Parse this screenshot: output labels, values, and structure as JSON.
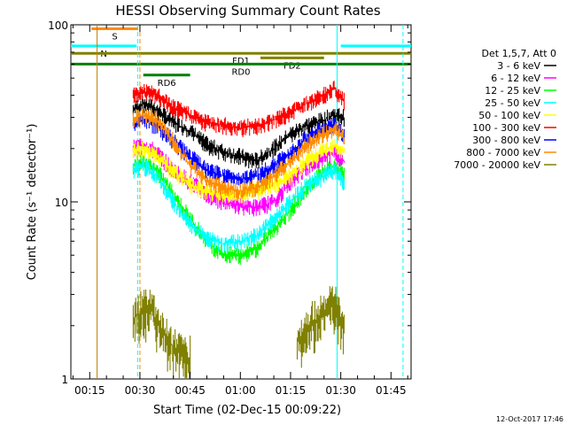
{
  "chart_data": {
    "type": "line",
    "title": "HESSI Observing Summary Count Rates",
    "ylabel": "Count Rate (s⁻¹ detector⁻¹)",
    "xlabel": "Start Time (02-Dec-15 00:09:22)",
    "y_scale": "log",
    "ylim": [
      1,
      100
    ],
    "y_ticks": [
      {
        "value": 1,
        "label": "1"
      },
      {
        "value": 10,
        "label": "10"
      },
      {
        "value": 100,
        "label": "100"
      }
    ],
    "x_range_min": [
      9.37,
      111
    ],
    "x_ticks": [
      {
        "value": 15,
        "label": "00:15"
      },
      {
        "value": 30,
        "label": "00:30"
      },
      {
        "value": 45,
        "label": "00:45"
      },
      {
        "value": 60,
        "label": "01:00"
      },
      {
        "value": 75,
        "label": "01:15"
      },
      {
        "value": 90,
        "label": "01:30"
      },
      {
        "value": 105,
        "label": "01:45"
      }
    ],
    "legend_title": "Det 1,5,7, Att 0",
    "legend_position": "right",
    "series": [
      {
        "name": "3 - 6 keV",
        "color": "#000000",
        "points": [
          [
            28,
            33
          ],
          [
            31,
            36
          ],
          [
            35,
            33
          ],
          [
            40,
            28
          ],
          [
            45,
            25
          ],
          [
            50,
            21
          ],
          [
            55,
            19
          ],
          [
            60,
            18
          ],
          [
            65,
            17
          ],
          [
            70,
            20
          ],
          [
            75,
            24
          ],
          [
            80,
            27
          ],
          [
            85,
            29
          ],
          [
            88,
            31
          ],
          [
            91,
            30
          ]
        ]
      },
      {
        "name": "6 - 12 keV",
        "color": "#ff00ff",
        "points": [
          [
            28,
            20
          ],
          [
            31,
            21
          ],
          [
            35,
            19
          ],
          [
            40,
            15
          ],
          [
            45,
            13
          ],
          [
            50,
            11
          ],
          [
            55,
            10
          ],
          [
            60,
            9.5
          ],
          [
            65,
            9.3
          ],
          [
            70,
            10
          ],
          [
            75,
            13
          ],
          [
            80,
            16
          ],
          [
            85,
            18
          ],
          [
            88,
            19
          ],
          [
            91,
            17
          ]
        ]
      },
      {
        "name": "12 - 25 keV",
        "color": "#00ff00",
        "points": [
          [
            28,
            16
          ],
          [
            31,
            17
          ],
          [
            35,
            15
          ],
          [
            40,
            11
          ],
          [
            45,
            8
          ],
          [
            50,
            6
          ],
          [
            55,
            5
          ],
          [
            60,
            5
          ],
          [
            65,
            5.5
          ],
          [
            70,
            7
          ],
          [
            75,
            9
          ],
          [
            80,
            12
          ],
          [
            85,
            15
          ],
          [
            88,
            16
          ],
          [
            91,
            14
          ]
        ]
      },
      {
        "name": "25 - 50 keV",
        "color": "#00ffff",
        "points": [
          [
            28,
            15
          ],
          [
            31,
            16
          ],
          [
            35,
            14
          ],
          [
            40,
            10
          ],
          [
            45,
            7.5
          ],
          [
            50,
            6.2
          ],
          [
            55,
            5.8
          ],
          [
            60,
            6
          ],
          [
            65,
            6.5
          ],
          [
            70,
            8
          ],
          [
            75,
            10
          ],
          [
            80,
            12.5
          ],
          [
            85,
            14
          ],
          [
            88,
            15
          ],
          [
            91,
            13
          ]
        ]
      },
      {
        "name": "50 - 100 keV",
        "color": "#ffff00",
        "points": [
          [
            28,
            19
          ],
          [
            31,
            20
          ],
          [
            35,
            18
          ],
          [
            40,
            15
          ],
          [
            45,
            12.5
          ],
          [
            50,
            11.5
          ],
          [
            55,
            11
          ],
          [
            60,
            11
          ],
          [
            65,
            11.5
          ],
          [
            70,
            12.5
          ],
          [
            75,
            14
          ],
          [
            80,
            17
          ],
          [
            85,
            19.5
          ],
          [
            88,
            21
          ],
          [
            91,
            19
          ]
        ]
      },
      {
        "name": "100 - 300 keV",
        "color": "#ff0000",
        "points": [
          [
            28,
            40
          ],
          [
            31,
            42
          ],
          [
            35,
            40
          ],
          [
            40,
            34
          ],
          [
            45,
            31
          ],
          [
            50,
            28
          ],
          [
            55,
            27
          ],
          [
            60,
            26
          ],
          [
            65,
            27
          ],
          [
            70,
            29
          ],
          [
            75,
            32
          ],
          [
            80,
            36
          ],
          [
            85,
            40
          ],
          [
            88,
            44
          ],
          [
            91,
            37
          ]
        ]
      },
      {
        "name": "300 - 800 keV",
        "color": "#0000ff",
        "points": [
          [
            28,
            27
          ],
          [
            31,
            29
          ],
          [
            35,
            27
          ],
          [
            40,
            22
          ],
          [
            45,
            18
          ],
          [
            50,
            15
          ],
          [
            55,
            14
          ],
          [
            60,
            13.5
          ],
          [
            65,
            14
          ],
          [
            70,
            16
          ],
          [
            75,
            19
          ],
          [
            80,
            23
          ],
          [
            85,
            26
          ],
          [
            88,
            27
          ],
          [
            91,
            24
          ]
        ]
      },
      {
        "name": "800 - 7000 keV",
        "color": "#ff8c00",
        "points": [
          [
            28,
            29
          ],
          [
            31,
            31
          ],
          [
            35,
            29
          ],
          [
            40,
            22
          ],
          [
            45,
            16
          ],
          [
            50,
            13
          ],
          [
            55,
            12
          ],
          [
            60,
            11.5
          ],
          [
            65,
            12
          ],
          [
            70,
            14
          ],
          [
            75,
            17
          ],
          [
            80,
            21
          ],
          [
            85,
            24
          ],
          [
            88,
            26
          ],
          [
            91,
            23
          ]
        ]
      },
      {
        "name": "7000 - 20000 keV",
        "color": "#808000",
        "points": [
          [
            28,
            2.2
          ],
          [
            31,
            2.4
          ],
          [
            33,
            2.6
          ],
          [
            36,
            1.9
          ],
          [
            40,
            1.5
          ],
          [
            44,
            1.3
          ],
          [
            77,
            1.6
          ],
          [
            81,
            2
          ],
          [
            85,
            2.4
          ],
          [
            88,
            2.6
          ],
          [
            91,
            1.9
          ]
        ]
      }
    ],
    "flag_bars": [
      {
        "label": "S",
        "color": "#ff8c00",
        "start": 15.5,
        "end": 29.5,
        "level": 95
      },
      {
        "label": "N",
        "color": "#00ffff",
        "start": 9.37,
        "end": 29,
        "level": 76
      },
      {
        "label": "",
        "color": "#00ffff",
        "start": 90,
        "end": 111,
        "level": 76
      },
      {
        "label": "FD1",
        "color": "#808000",
        "start": 9.37,
        "end": 111,
        "level": 69
      },
      {
        "label": "FD2",
        "color": "#808000",
        "start": 66,
        "end": 85,
        "level": 65
      },
      {
        "label": "RD0",
        "color": "#008000",
        "start": 9.37,
        "end": 111,
        "level": 60
      },
      {
        "label": "RD6",
        "color": "#008000",
        "start": 31,
        "end": 45,
        "level": 52
      }
    ],
    "vertical_markers": [
      {
        "time": 17.2,
        "color": "#c08000",
        "style": "solid"
      },
      {
        "time": 29.3,
        "color": "#00ffff",
        "style": "dashed"
      },
      {
        "time": 30.0,
        "color": "#ff8c00",
        "style": "dashed"
      },
      {
        "time": 88.9,
        "color": "#00ffff",
        "style": "solid"
      },
      {
        "time": 108.6,
        "color": "#00ffff",
        "style": "dashed"
      }
    ],
    "footer_date": "12-Oct-2017 17:46"
  }
}
